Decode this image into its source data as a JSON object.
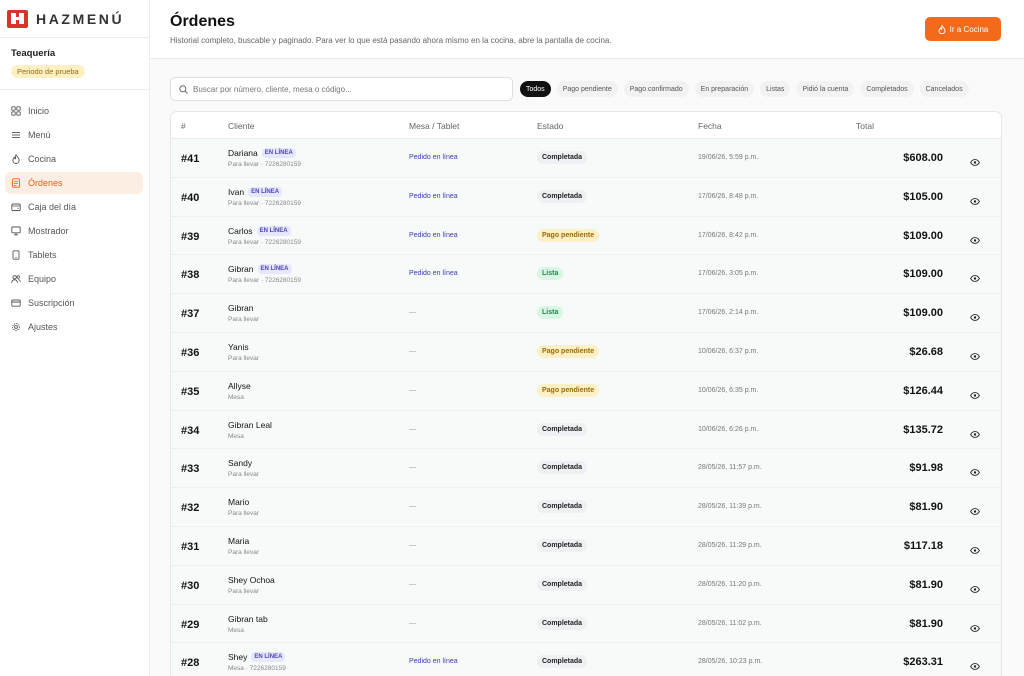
{
  "brand": {
    "name": "HAZMENÚ"
  },
  "business": {
    "name": "Teaquería",
    "badge": "Periodo de prueba"
  },
  "nav": [
    {
      "label": "Inicio",
      "icon": "grid-icon",
      "active": false
    },
    {
      "label": "Menú",
      "icon": "list-icon",
      "active": false
    },
    {
      "label": "Cocina",
      "icon": "flame-icon",
      "active": false
    },
    {
      "label": "Órdenes",
      "icon": "receipt-icon",
      "active": true
    },
    {
      "label": "Caja del día",
      "icon": "wallet-icon",
      "active": false
    },
    {
      "label": "Mostrador",
      "icon": "monitor-icon",
      "active": false
    },
    {
      "label": "Tablets",
      "icon": "tablet-icon",
      "active": false
    },
    {
      "label": "Equipo",
      "icon": "users-icon",
      "active": false
    },
    {
      "label": "Suscripción",
      "icon": "card-icon",
      "active": false
    },
    {
      "label": "Ajustes",
      "icon": "gear-icon",
      "active": false
    }
  ],
  "header": {
    "title": "Órdenes",
    "subtitle": "Historial completo, buscable y paginado. Para ver lo que está pasando ahora mismo en la cocina, abre la pantalla de cocina.",
    "cta_label": "Ir a Cocina"
  },
  "search": {
    "placeholder": "Buscar por número, cliente, mesa o código..."
  },
  "filters": [
    {
      "label": "Todos",
      "active": true
    },
    {
      "label": "Pago pendiente",
      "active": false
    },
    {
      "label": "Pago confirmado",
      "active": false
    },
    {
      "label": "En preparación",
      "active": false
    },
    {
      "label": "Listas",
      "active": false
    },
    {
      "label": "Pidió la cuenta",
      "active": false
    },
    {
      "label": "Completados",
      "active": false
    },
    {
      "label": "Cancelados",
      "active": false
    }
  ],
  "table": {
    "columns": {
      "num": "#",
      "cliente": "Cliente",
      "mesa": "Mesa / Tablet",
      "estado": "Estado",
      "fecha": "Fecha",
      "total": "Total"
    },
    "rows": [
      {
        "num": "#41",
        "cliente": "Dariana",
        "online": "EN LÍNEA",
        "sub": "Para llevar · 7226280159",
        "mesa": "Pedido en línea",
        "estado": "Completada",
        "status": "completada",
        "fecha": "19/06/26, 5:59 p.m.",
        "total": "$608.00"
      },
      {
        "num": "#40",
        "cliente": "Ivan",
        "online": "EN LÍNEA",
        "sub": "Para llevar · 7226280159",
        "mesa": "Pedido en línea",
        "estado": "Completada",
        "status": "completada",
        "fecha": "17/06/26, 8:48 p.m.",
        "total": "$105.00"
      },
      {
        "num": "#39",
        "cliente": "Carlos",
        "online": "EN LÍNEA",
        "sub": "Para llevar · 7226280159",
        "mesa": "Pedido en línea",
        "estado": "Pago pendiente",
        "status": "pendiente",
        "fecha": "17/06/26, 8:42 p.m.",
        "total": "$109.00"
      },
      {
        "num": "#38",
        "cliente": "Gibran",
        "online": "EN LÍNEA",
        "sub": "Para llevar · 7226280159",
        "mesa": "Pedido en línea",
        "estado": "Lista",
        "status": "lista",
        "fecha": "17/06/26, 3:05 p.m.",
        "total": "$109.00"
      },
      {
        "num": "#37",
        "cliente": "Gibran",
        "online": "",
        "sub": "Para llevar",
        "mesa": "—",
        "estado": "Lista",
        "status": "lista",
        "fecha": "17/06/26, 2:14 p.m.",
        "total": "$109.00"
      },
      {
        "num": "#36",
        "cliente": "Yanis",
        "online": "",
        "sub": "Para llevar",
        "mesa": "—",
        "estado": "Pago pendiente",
        "status": "pendiente",
        "fecha": "10/06/26, 6:37 p.m.",
        "total": "$26.68"
      },
      {
        "num": "#35",
        "cliente": "Allyse",
        "online": "",
        "sub": "Mesa",
        "mesa": "—",
        "estado": "Pago pendiente",
        "status": "pendiente",
        "fecha": "10/06/26, 6:35 p.m.",
        "total": "$126.44"
      },
      {
        "num": "#34",
        "cliente": "Gibran Leal",
        "online": "",
        "sub": "Mesa",
        "mesa": "—",
        "estado": "Completada",
        "status": "completada",
        "fecha": "10/06/26, 6:26 p.m.",
        "total": "$135.72"
      },
      {
        "num": "#33",
        "cliente": "Sandy",
        "online": "",
        "sub": "Para llevar",
        "mesa": "—",
        "estado": "Completada",
        "status": "completada",
        "fecha": "28/05/26, 11:57 p.m.",
        "total": "$91.98"
      },
      {
        "num": "#32",
        "cliente": "Mario",
        "online": "",
        "sub": "Para llevar",
        "mesa": "—",
        "estado": "Completada",
        "status": "completada",
        "fecha": "28/05/26, 11:39 p.m.",
        "total": "$81.90"
      },
      {
        "num": "#31",
        "cliente": "Maria",
        "online": "",
        "sub": "Para llevar",
        "mesa": "—",
        "estado": "Completada",
        "status": "completada",
        "fecha": "28/05/26, 11:29 p.m.",
        "total": "$117.18"
      },
      {
        "num": "#30",
        "cliente": "Shey Ochoa",
        "online": "",
        "sub": "Para llevar",
        "mesa": "—",
        "estado": "Completada",
        "status": "completada",
        "fecha": "28/05/26, 11:20 p.m.",
        "total": "$81.90"
      },
      {
        "num": "#29",
        "cliente": "Gibran tab",
        "online": "",
        "sub": "Mesa",
        "mesa": "—",
        "estado": "Completada",
        "status": "completada",
        "fecha": "28/05/26, 11:02 p.m.",
        "total": "$81.90"
      },
      {
        "num": "#28",
        "cliente": "Shey",
        "online": "EN LÍNEA",
        "sub": "Mesa · 7226280159",
        "mesa": "Pedido en línea",
        "estado": "Completada",
        "status": "completada",
        "fecha": "28/05/26, 10:23 p.m.",
        "total": "$263.31"
      }
    ]
  },
  "colors": {
    "accent": "#f26b1d",
    "brand_red": "#d9342b",
    "online_badge": "#4b45b8"
  }
}
